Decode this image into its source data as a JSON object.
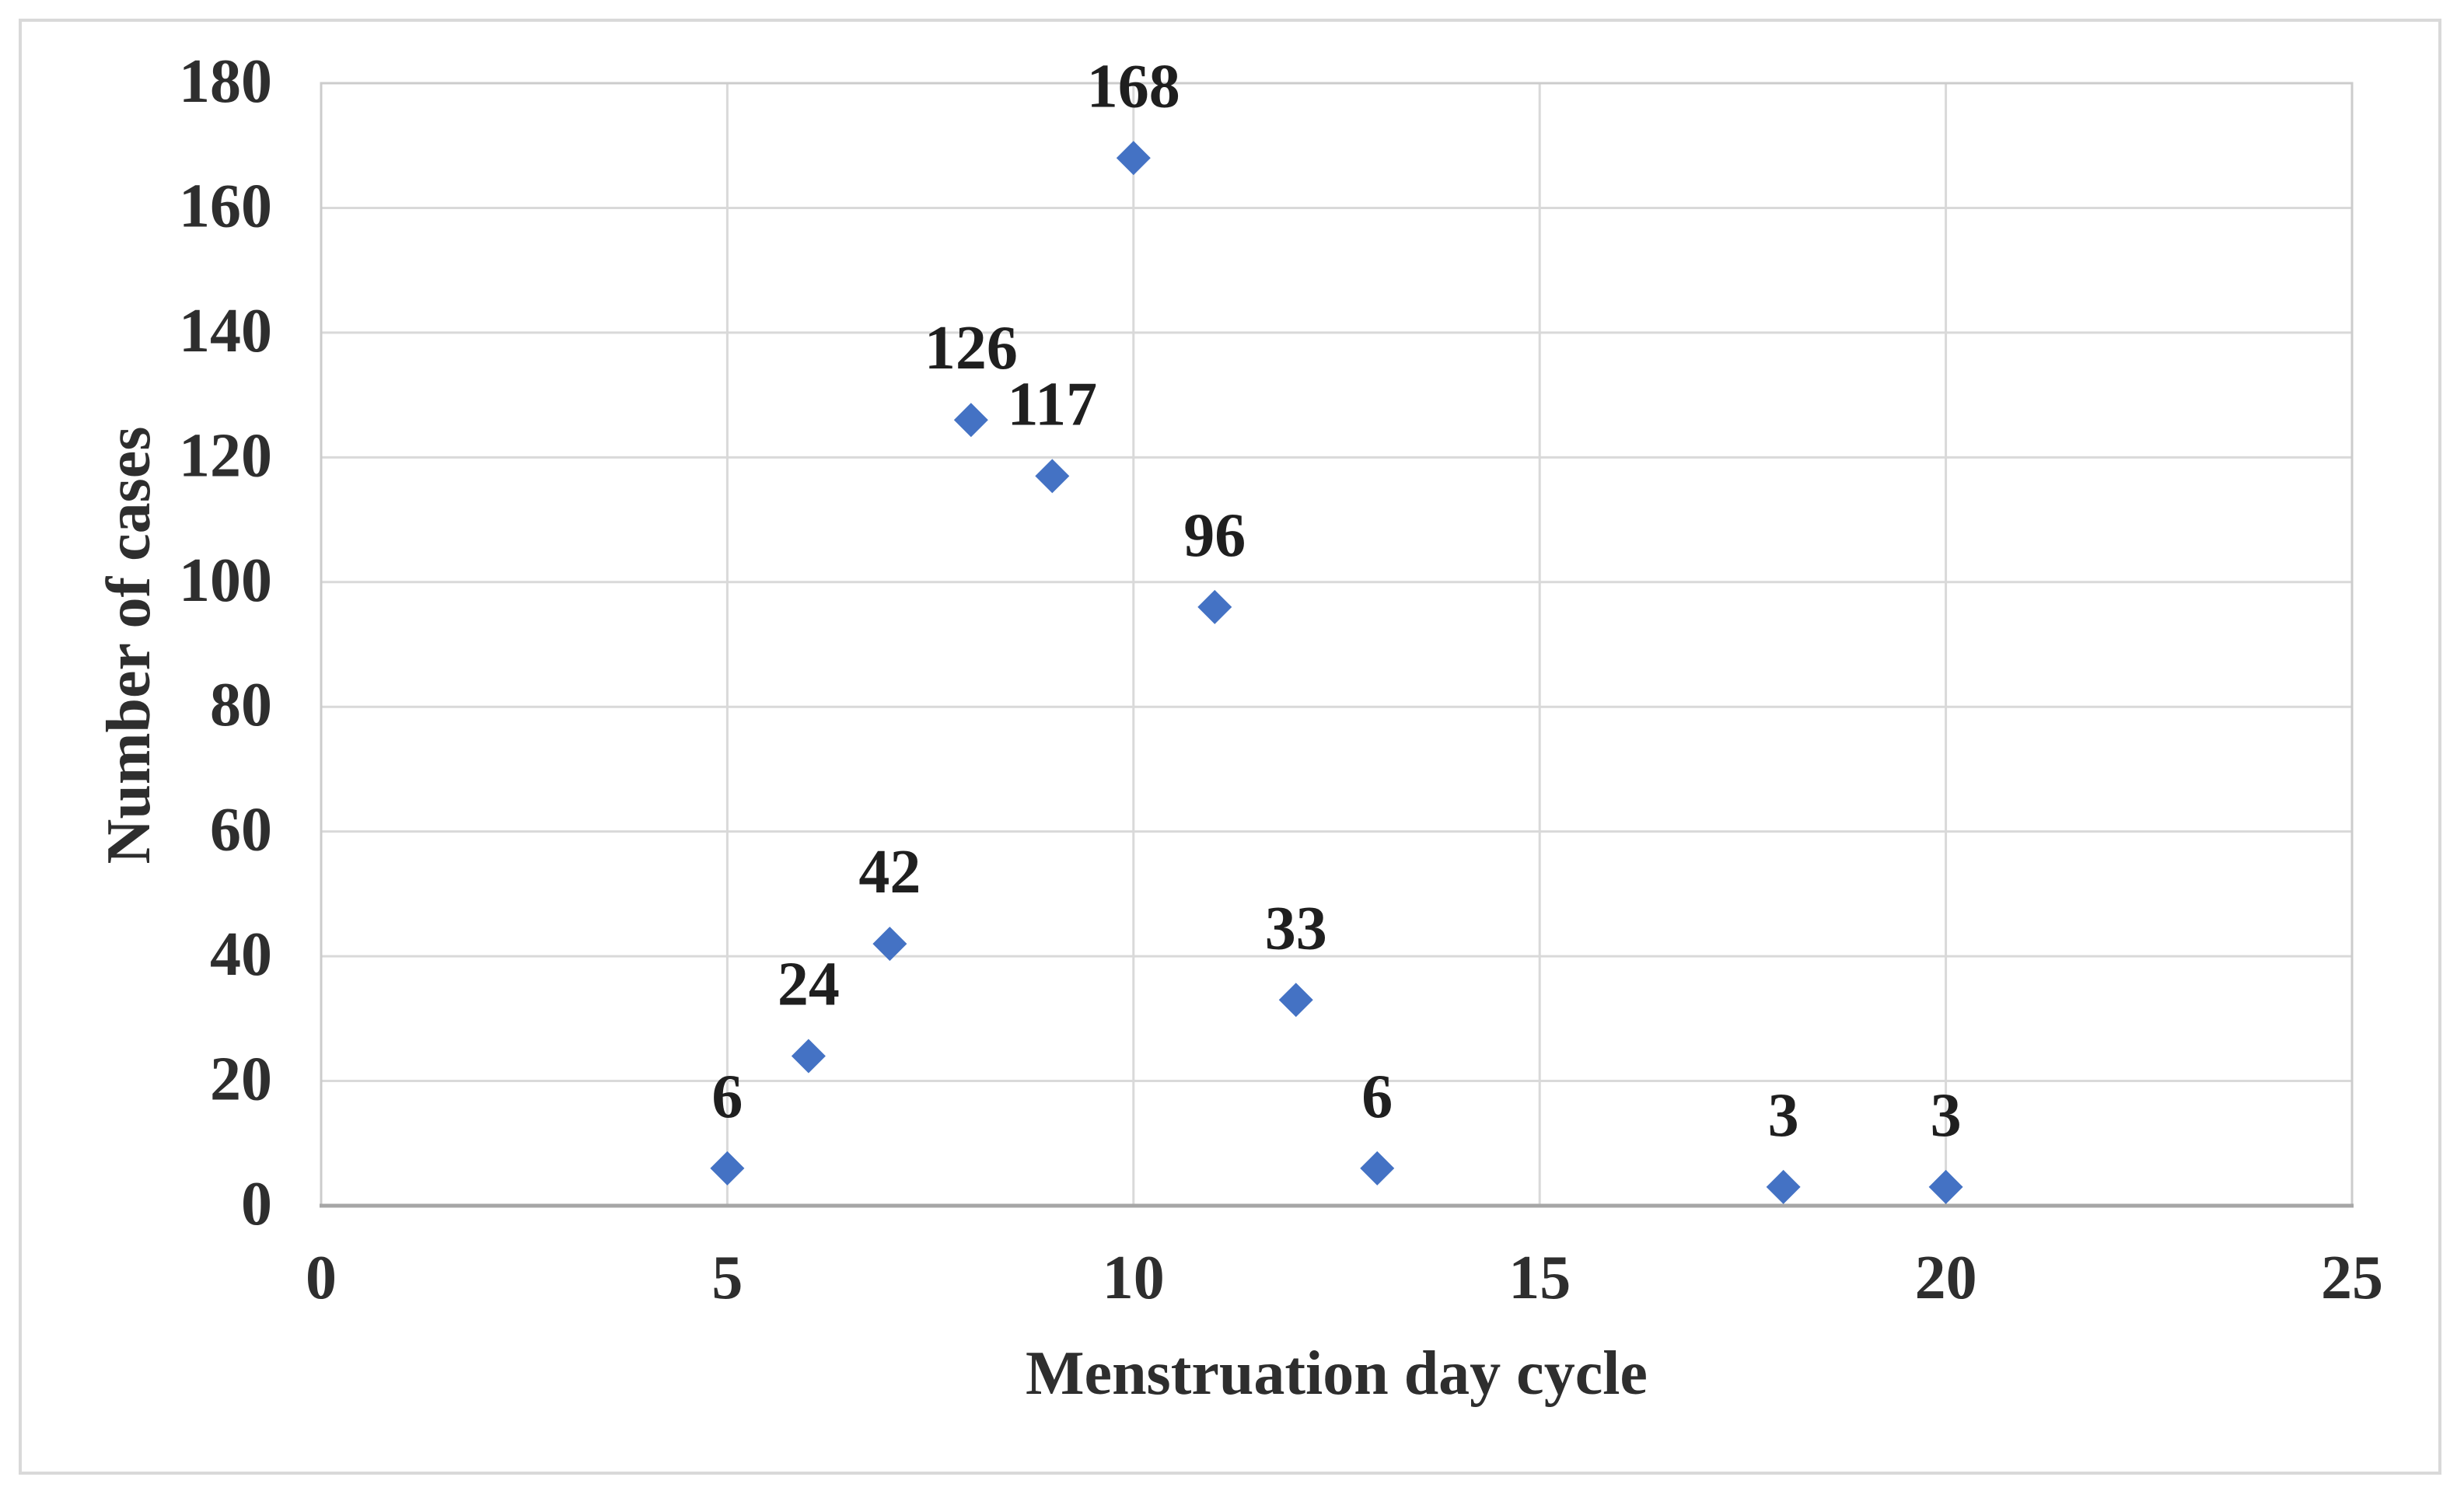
{
  "figure": {
    "background": "#ffffff",
    "outer_border_color": "#d9d9d9"
  },
  "chart_data": {
    "type": "scatter",
    "title": "",
    "xlabel": "Menstruation day cycle",
    "ylabel": "Number of cases",
    "xlim": [
      0,
      25
    ],
    "ylim": [
      0,
      180
    ],
    "x_ticks": [
      0,
      5,
      10,
      15,
      20,
      25
    ],
    "y_ticks": [
      0,
      20,
      40,
      60,
      80,
      100,
      120,
      140,
      160,
      180
    ],
    "grid": true,
    "legend_position": "none",
    "marker": {
      "shape": "diamond",
      "color": "#4472c4",
      "size": 44
    },
    "points": [
      {
        "x": 5,
        "y": 6,
        "label": "6"
      },
      {
        "x": 6,
        "y": 24,
        "label": "24"
      },
      {
        "x": 7,
        "y": 42,
        "label": "42"
      },
      {
        "x": 8,
        "y": 126,
        "label": "126"
      },
      {
        "x": 9,
        "y": 117,
        "label": "117"
      },
      {
        "x": 10,
        "y": 168,
        "label": "168"
      },
      {
        "x": 11,
        "y": 96,
        "label": "96"
      },
      {
        "x": 12,
        "y": 33,
        "label": "33"
      },
      {
        "x": 13,
        "y": 6,
        "label": "6"
      },
      {
        "x": 18,
        "y": 3,
        "label": "3"
      },
      {
        "x": 20,
        "y": 3,
        "label": "3"
      }
    ],
    "styles": {
      "grid_color": "#d9d9d9",
      "plot_border_color": "#cccccc",
      "axis_line_color": "#a6a6a6",
      "tick_text_color": "#2e2e2e",
      "data_label_color": "#1f1f1f"
    }
  }
}
